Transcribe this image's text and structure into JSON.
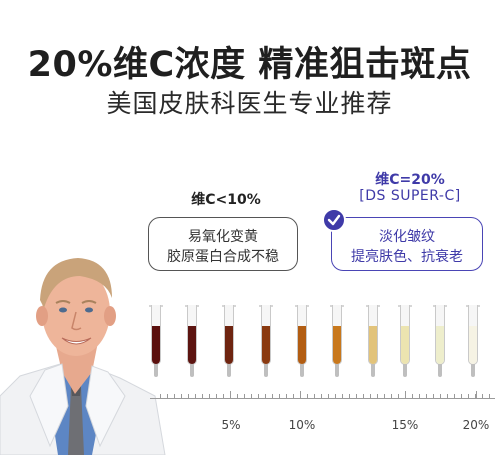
{
  "header": {
    "title": "20%维C浓度 精准狙击斑点",
    "subtitle": "美国皮肤科医生专业推荐"
  },
  "left_panel": {
    "label": "维C<10%",
    "lines": [
      "易氧化变黄",
      "胶原蛋白合成不稳"
    ]
  },
  "right_panel": {
    "label": "维C=20%",
    "product": "[DS SUPER-C]",
    "lines": [
      "淡化皱纹",
      "提亮肤色、抗衰老"
    ],
    "accent_color": "#3f3aa8",
    "badge_icon": "check-icon"
  },
  "tubes": {
    "colors": [
      "#5a0f0d",
      "#5c1410",
      "#6e2410",
      "#8a3a10",
      "#b25d12",
      "#c8781c",
      "#e2c37a",
      "#ece4b0",
      "#eeeecc",
      "#f6f3e4"
    ]
  },
  "scale": {
    "tick_labels": [
      "5%",
      "10%",
      "15%",
      "20%"
    ]
  },
  "illustration": {
    "icon": "doctor-portrait"
  }
}
